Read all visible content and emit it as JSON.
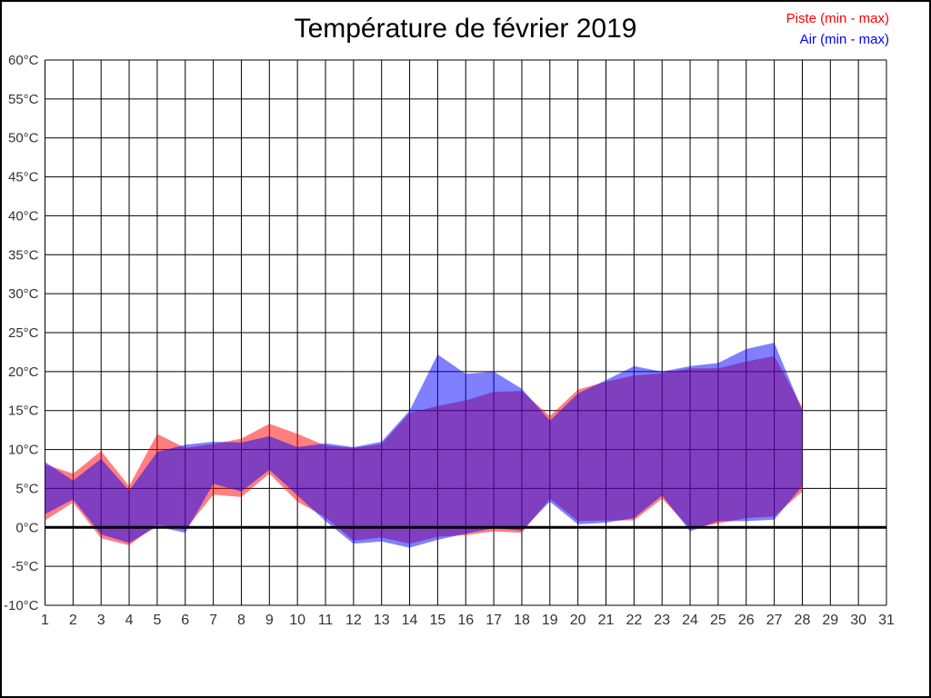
{
  "chart_data": {
    "type": "area",
    "title": "Température de février 2019",
    "grid": true,
    "legend_position": "top-right",
    "xlim": [
      1,
      31
    ],
    "ylim": [
      -10,
      60
    ],
    "zero_line_width": 3,
    "grid_color": "#000000",
    "label_color": "#333333",
    "days": [
      1,
      2,
      3,
      4,
      5,
      6,
      7,
      8,
      9,
      10,
      11,
      12,
      13,
      14,
      15,
      16,
      17,
      18,
      19,
      20,
      21,
      22,
      23,
      24,
      25,
      26,
      27,
      28
    ],
    "series": [
      {
        "name": "Piste (min - max)",
        "color": "#ff0000",
        "fill_opacity": 0.5,
        "min": [
          0.9,
          3.2,
          -1.4,
          -2.3,
          0.4,
          -0.3,
          4.2,
          3.9,
          6.9,
          3.3,
          1.3,
          -1.7,
          -1.3,
          -2.1,
          -1.2,
          -1.0,
          -0.5,
          -0.7,
          3.7,
          0.8,
          0.9,
          0.9,
          3.7,
          -0.1,
          0.5,
          1.2,
          1.4,
          4.6
        ],
        "max": [
          8.1,
          6.9,
          9.8,
          5.3,
          12.0,
          10.2,
          10.7,
          11.4,
          13.3,
          12.0,
          10.5,
          10.2,
          10.7,
          14.7,
          15.6,
          16.3,
          17.4,
          17.5,
          14.3,
          17.7,
          18.7,
          19.5,
          19.8,
          20.4,
          20.4,
          21.3,
          22.0,
          15.4
        ]
      },
      {
        "name": "Air (min - max)",
        "color": "#0000ff",
        "fill_opacity": 0.5,
        "min": [
          1.7,
          3.6,
          -0.9,
          -2.0,
          0.1,
          -0.7,
          5.6,
          4.6,
          7.4,
          4.1,
          0.8,
          -2.1,
          -1.8,
          -2.6,
          -1.6,
          -0.8,
          -0.1,
          -0.4,
          3.3,
          0.4,
          0.6,
          1.2,
          4.1,
          -0.5,
          0.8,
          0.8,
          1.0,
          5.3
        ],
        "max": [
          8.4,
          6.0,
          8.8,
          4.7,
          9.7,
          10.6,
          11.0,
          10.9,
          11.7,
          10.3,
          10.8,
          10.3,
          11.0,
          15.0,
          22.2,
          19.7,
          20.0,
          17.8,
          13.7,
          17.2,
          18.9,
          20.7,
          20.0,
          20.7,
          21.1,
          22.9,
          23.7,
          15.0
        ]
      }
    ],
    "y_ticks": [
      {
        "v": 60,
        "label": "60°C"
      },
      {
        "v": 55,
        "label": "55°C"
      },
      {
        "v": 50,
        "label": "50°C"
      },
      {
        "v": 45,
        "label": "45°C"
      },
      {
        "v": 40,
        "label": "40°C"
      },
      {
        "v": 35,
        "label": "35°C"
      },
      {
        "v": 30,
        "label": "30°C"
      },
      {
        "v": 25,
        "label": "25°C"
      },
      {
        "v": 20,
        "label": "20°C"
      },
      {
        "v": 15,
        "label": "15°C"
      },
      {
        "v": 10,
        "label": "10°C"
      },
      {
        "v": 5,
        "label": "5°C"
      },
      {
        "v": 0,
        "label": "0°C"
      },
      {
        "v": -5,
        "label": "-5°C"
      },
      {
        "v": -10,
        "label": "-10°C"
      }
    ],
    "x_ticks": [
      {
        "v": 1,
        "label": "1"
      },
      {
        "v": 2,
        "label": "2"
      },
      {
        "v": 3,
        "label": "3"
      },
      {
        "v": 4,
        "label": "4"
      },
      {
        "v": 5,
        "label": "5"
      },
      {
        "v": 6,
        "label": "6"
      },
      {
        "v": 7,
        "label": "7"
      },
      {
        "v": 8,
        "label": "8"
      },
      {
        "v": 9,
        "label": "9"
      },
      {
        "v": 10,
        "label": "10"
      },
      {
        "v": 11,
        "label": "11"
      },
      {
        "v": 12,
        "label": "12"
      },
      {
        "v": 13,
        "label": "13"
      },
      {
        "v": 14,
        "label": "14"
      },
      {
        "v": 15,
        "label": "15"
      },
      {
        "v": 16,
        "label": "16"
      },
      {
        "v": 17,
        "label": "17"
      },
      {
        "v": 18,
        "label": "18"
      },
      {
        "v": 19,
        "label": "19"
      },
      {
        "v": 20,
        "label": "20"
      },
      {
        "v": 21,
        "label": "21"
      },
      {
        "v": 22,
        "label": "22"
      },
      {
        "v": 23,
        "label": "23"
      },
      {
        "v": 24,
        "label": "24"
      },
      {
        "v": 25,
        "label": "25"
      },
      {
        "v": 26,
        "label": "26"
      },
      {
        "v": 27,
        "label": "27"
      },
      {
        "v": 28,
        "label": "28"
      },
      {
        "v": 29,
        "label": "29"
      },
      {
        "v": 30,
        "label": "30"
      },
      {
        "v": 31,
        "label": "31"
      }
    ]
  }
}
